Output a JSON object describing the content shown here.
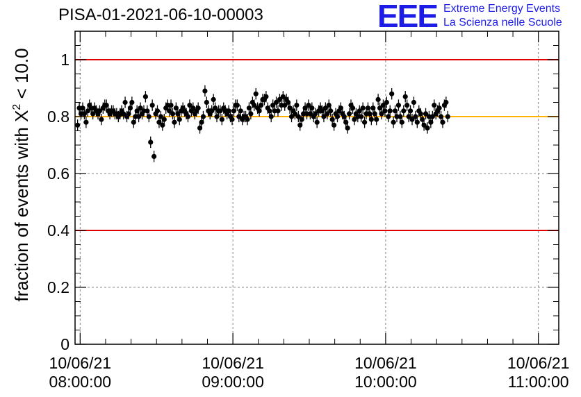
{
  "header": {
    "title": "PISA-01-2021-06-10-00003",
    "logo_text": "EEE",
    "logo_line1": "Extreme Energy Events",
    "logo_line2": "La Scienza nelle Scuole",
    "logo_color": "#1c1ce6"
  },
  "chart_data": {
    "type": "scatter",
    "title": "PISA-01-2021-06-10-00003",
    "ylabel": "fraction of events with X² < 10.0",
    "ylabel_main": "fraction of events with X",
    "ylabel_sup": "2",
    "ylabel_tail": " < 10.0",
    "xlabel": "",
    "xlim_minutes": [
      -2,
      188
    ],
    "ylim": [
      0,
      1.1
    ],
    "grid": true,
    "x_ticks": [
      {
        "minute": 0,
        "date": "10/06/21",
        "time": "08:00:00"
      },
      {
        "minute": 60,
        "date": "10/06/21",
        "time": "09:00:00"
      },
      {
        "minute": 120,
        "date": "10/06/21",
        "time": "10:00:00"
      },
      {
        "minute": 180,
        "date": "10/06/21",
        "time": "11:00:00"
      }
    ],
    "y_ticks": [
      "0",
      "0.2",
      "0.4",
      "0.6",
      "0.8",
      "1"
    ],
    "y_tick_values": [
      0,
      0.2,
      0.4,
      0.6,
      0.8,
      1.0
    ],
    "reference_lines": [
      {
        "y": 1.0,
        "color": "#e00000"
      },
      {
        "y": 0.4,
        "color": "#e00000"
      },
      {
        "y": 0.8,
        "color": "#ffb000"
      }
    ],
    "series": [
      {
        "marker_color": "#000000",
        "y_error": 0.02,
        "x_start_minute": -1,
        "x_step_minute": 0.667,
        "values": [
          0.77,
          0.83,
          0.81,
          0.83,
          0.81,
          0.78,
          0.82,
          0.84,
          0.83,
          0.81,
          0.83,
          0.82,
          0.81,
          0.82,
          0.79,
          0.83,
          0.84,
          0.84,
          0.82,
          0.81,
          0.82,
          0.82,
          0.81,
          0.81,
          0.8,
          0.81,
          0.82,
          0.81,
          0.85,
          0.8,
          0.81,
          0.83,
          0.85,
          0.78,
          0.8,
          0.82,
          0.8,
          0.83,
          0.81,
          0.82,
          0.87,
          0.82,
          0.8,
          0.71,
          0.84,
          0.66,
          0.81,
          0.82,
          0.78,
          0.8,
          0.77,
          0.79,
          0.83,
          0.84,
          0.82,
          0.84,
          0.81,
          0.78,
          0.83,
          0.81,
          0.79,
          0.82,
          0.83,
          0.82,
          0.81,
          0.8,
          0.84,
          0.82,
          0.83,
          0.81,
          0.82,
          0.83,
          0.76,
          0.78,
          0.8,
          0.89,
          0.85,
          0.82,
          0.81,
          0.82,
          0.86,
          0.83,
          0.8,
          0.82,
          0.82,
          0.79,
          0.83,
          0.82,
          0.81,
          0.82,
          0.8,
          0.79,
          0.82,
          0.84,
          0.84,
          0.8,
          0.82,
          0.79,
          0.8,
          0.8,
          0.79,
          0.83,
          0.81,
          0.85,
          0.84,
          0.88,
          0.83,
          0.82,
          0.84,
          0.86,
          0.86,
          0.87,
          0.83,
          0.82,
          0.8,
          0.84,
          0.82,
          0.85,
          0.82,
          0.86,
          0.84,
          0.87,
          0.84,
          0.86,
          0.85,
          0.83,
          0.8,
          0.82,
          0.81,
          0.84,
          0.8,
          0.77,
          0.79,
          0.81,
          0.83,
          0.81,
          0.84,
          0.81,
          0.83,
          0.8,
          0.81,
          0.78,
          0.82,
          0.83,
          0.82,
          0.8,
          0.83,
          0.81,
          0.84,
          0.82,
          0.79,
          0.77,
          0.81,
          0.8,
          0.82,
          0.83,
          0.81,
          0.8,
          0.78,
          0.76,
          0.81,
          0.84,
          0.83,
          0.79,
          0.81,
          0.8,
          0.82,
          0.8,
          0.83,
          0.78,
          0.81,
          0.83,
          0.81,
          0.79,
          0.83,
          0.81,
          0.79,
          0.86,
          0.83,
          0.81,
          0.84,
          0.82,
          0.85,
          0.8,
          0.82,
          0.88,
          0.78,
          0.82,
          0.8,
          0.84,
          0.8,
          0.78,
          0.82,
          0.87,
          0.84,
          0.8,
          0.82,
          0.79,
          0.85,
          0.8,
          0.78,
          0.82,
          0.81,
          0.79,
          0.77,
          0.81,
          0.76,
          0.8,
          0.78,
          0.8,
          0.84,
          0.81,
          0.82,
          0.83,
          0.8,
          0.78,
          0.84,
          0.85,
          0.8
        ]
      }
    ]
  }
}
